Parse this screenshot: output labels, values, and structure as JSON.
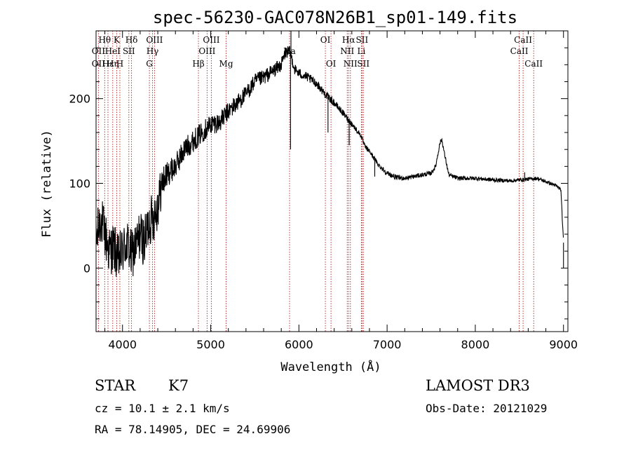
{
  "chart_data": {
    "type": "line",
    "title": "spec-56230-GAC078N26B1_sp01-149.fits",
    "xlabel": "Wavelength (Å)",
    "ylabel": "Flux (relative)",
    "xlim": [
      3700,
      9050
    ],
    "ylim": [
      -75,
      280
    ],
    "xticks": [
      4000,
      5000,
      6000,
      7000,
      8000,
      9000
    ],
    "yticks": [
      0,
      100,
      200
    ],
    "spectrum_anchors": [
      [
        3700,
        30
      ],
      [
        3750,
        60
      ],
      [
        3800,
        40
      ],
      [
        3850,
        20
      ],
      [
        3900,
        25
      ],
      [
        3950,
        10
      ],
      [
        4000,
        20
      ],
      [
        4050,
        30
      ],
      [
        4100,
        15
      ],
      [
        4150,
        25
      ],
      [
        4200,
        40
      ],
      [
        4250,
        30
      ],
      [
        4300,
        55
      ],
      [
        4350,
        60
      ],
      [
        4400,
        75
      ],
      [
        4450,
        100
      ],
      [
        4500,
        110
      ],
      [
        4600,
        120
      ],
      [
        4700,
        140
      ],
      [
        4800,
        150
      ],
      [
        4900,
        160
      ],
      [
        5000,
        170
      ],
      [
        5100,
        172
      ],
      [
        5200,
        185
      ],
      [
        5300,
        195
      ],
      [
        5400,
        205
      ],
      [
        5500,
        220
      ],
      [
        5600,
        225
      ],
      [
        5700,
        232
      ],
      [
        5800,
        240
      ],
      [
        5850,
        255
      ],
      [
        5900,
        255
      ],
      [
        5950,
        235
      ],
      [
        6000,
        230
      ],
      [
        6100,
        225
      ],
      [
        6200,
        218
      ],
      [
        6300,
        205
      ],
      [
        6400,
        195
      ],
      [
        6500,
        183
      ],
      [
        6600,
        170
      ],
      [
        6700,
        157
      ],
      [
        6750,
        143
      ],
      [
        6800,
        138
      ],
      [
        6850,
        130
      ],
      [
        6900,
        122
      ],
      [
        7000,
        112
      ],
      [
        7100,
        107
      ],
      [
        7200,
        106
      ],
      [
        7300,
        108
      ],
      [
        7400,
        110
      ],
      [
        7500,
        112
      ],
      [
        7550,
        120
      ],
      [
        7600,
        148
      ],
      [
        7620,
        152
      ],
      [
        7650,
        135
      ],
      [
        7700,
        110
      ],
      [
        7800,
        106
      ],
      [
        8000,
        106
      ],
      [
        8200,
        104
      ],
      [
        8400,
        103
      ],
      [
        8600,
        105
      ],
      [
        8700,
        106
      ],
      [
        8800,
        102
      ],
      [
        8900,
        98
      ],
      [
        8970,
        93
      ],
      [
        9000,
        30
      ]
    ],
    "noise_amplitude": [
      [
        3700,
        30
      ],
      [
        4400,
        30
      ],
      [
        4500,
        15
      ],
      [
        5800,
        8
      ],
      [
        6000,
        6
      ],
      [
        6700,
        3
      ],
      [
        9000,
        2
      ]
    ],
    "spikes": [
      [
        5910,
        282
      ],
      [
        5905,
        140
      ],
      [
        6330,
        160
      ],
      [
        6570,
        145
      ],
      [
        6860,
        108
      ],
      [
        8560,
        113
      ],
      [
        9000,
        0
      ]
    ],
    "line_ids": [
      {
        "label": "Hθ",
        "wave": 3798,
        "row": 1
      },
      {
        "label": "OII",
        "wave": 3727,
        "row": 2
      },
      {
        "label": "OII",
        "wave": 3727,
        "row": 3
      },
      {
        "label": "Hε",
        "wave": 3835,
        "row": 3
      },
      {
        "label": "K",
        "wave": 3934,
        "row": 1
      },
      {
        "label": "HeI",
        "wave": 3889,
        "row": 2
      },
      {
        "label": "Hη",
        "wave": 3889,
        "row": 3
      },
      {
        "label": "H",
        "wave": 3970,
        "row": 3
      },
      {
        "label": "Hδ",
        "wave": 4102,
        "row": 1
      },
      {
        "label": "SII",
        "wave": 4072,
        "row": 2
      },
      {
        "label": "OIII",
        "wave": 4363,
        "row": 1
      },
      {
        "label": "Hγ",
        "wave": 4340,
        "row": 2
      },
      {
        "label": "G",
        "wave": 4305,
        "row": 3
      },
      {
        "label": "OIII",
        "wave": 5007,
        "row": 1
      },
      {
        "label": "OIII",
        "wave": 4959,
        "row": 2
      },
      {
        "label": "Hβ",
        "wave": 4861,
        "row": 3
      },
      {
        "label": "Mg",
        "wave": 5175,
        "row": 3
      },
      {
        "label": "Na",
        "wave": 5894,
        "row": 2
      },
      {
        "label": "OI",
        "wave": 6300,
        "row": 1
      },
      {
        "label": "OI",
        "wave": 6364,
        "row": 3
      },
      {
        "label": "Hα",
        "wave": 6563,
        "row": 1
      },
      {
        "label": "NII",
        "wave": 6548,
        "row": 2
      },
      {
        "label": "NII",
        "wave": 6584,
        "row": 3
      },
      {
        "label": "SII",
        "wave": 6716,
        "row": 1
      },
      {
        "label": "Li",
        "wave": 6708,
        "row": 2
      },
      {
        "label": "SII",
        "wave": 6731,
        "row": 3
      },
      {
        "label": "CaII",
        "wave": 8542,
        "row": 1
      },
      {
        "label": "CaII",
        "wave": 8498,
        "row": 2
      },
      {
        "label": "CaII",
        "wave": 8662,
        "row": 3
      }
    ],
    "line_id_color": "#b22222",
    "spectrum_color": "#000000"
  },
  "info": {
    "object_class": "STAR",
    "subclass": "K7",
    "survey": "LAMOST DR3",
    "redshift": "cz = 10.1 ± 2.1 km/s",
    "obs_date": "Obs-Date: 20121029",
    "coords": "RA =  78.14905, DEC =  24.69906"
  }
}
